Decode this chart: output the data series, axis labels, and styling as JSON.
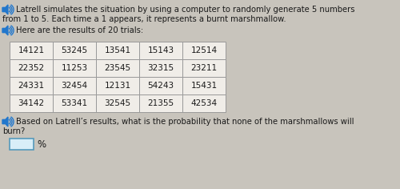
{
  "bg_color": "#c8c4bc",
  "table_bg": "#f0ede8",
  "table_border": "#999999",
  "text_color": "#1a1a1a",
  "speaker_body_color": "#2277cc",
  "speaker_wave_color": "#2277cc",
  "title_line1": "Latrell simulates the situation by using a computer to randomly generate 5 numbers",
  "title_line2": "from 1 to 5. Each time a 1 appears, it represents a burnt marshmallow.",
  "subtitle": "Here are the results of 20 trials:",
  "question_line1": "Based on Latrell’s results, what is the probability that none of the marshmallows will",
  "question_line2": "burn?",
  "table_data": [
    [
      "14121",
      "53245",
      "13541",
      "15143",
      "12514"
    ],
    [
      "22352",
      "11253",
      "23545",
      "32315",
      "23211"
    ],
    [
      "24331",
      "32454",
      "12131",
      "54243",
      "15431"
    ],
    [
      "34142",
      "53341",
      "32545",
      "21355",
      "42534"
    ]
  ],
  "answer_box_color": "#d8eef8",
  "answer_box_border": "#5599bb",
  "answer_box_label": "%",
  "font_size": 7.2,
  "table_font_size": 7.5
}
